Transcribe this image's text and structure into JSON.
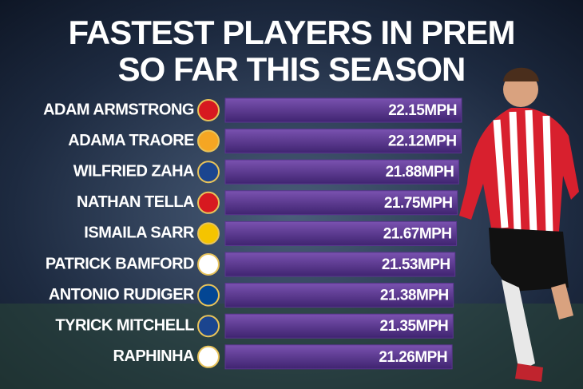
{
  "chart_data": {
    "type": "bar",
    "orientation": "horizontal",
    "title": [
      "FASTEST PLAYERS IN PREM",
      "SO FAR THIS SEASON"
    ],
    "categories": [
      "ADAM ARMSTRONG",
      "ADAMA TRAORE",
      "WILFRIED ZAHA",
      "NATHAN TELLA",
      "ISMAILA SARR",
      "PATRICK BAMFORD",
      "ANTONIO RUDIGER",
      "TYRICK MITCHELL",
      "RAPHINHA"
    ],
    "values": [
      22.15,
      22.12,
      21.88,
      21.75,
      21.67,
      21.53,
      21.38,
      21.35,
      21.26
    ],
    "value_labels": [
      "22.15MPH",
      "22.12MPH",
      "21.88MPH",
      "21.75MPH",
      "21.67MPH",
      "21.53MPH",
      "21.38MPH",
      "21.35MPH",
      "21.26MPH"
    ],
    "color": "#5b3590"
  }
}
